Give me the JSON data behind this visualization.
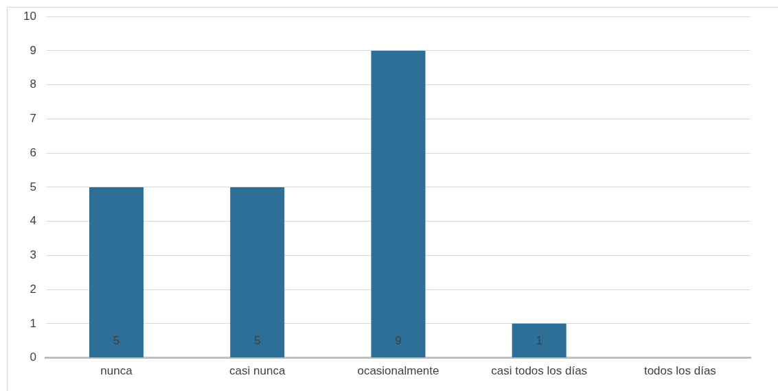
{
  "chart_data": {
    "type": "bar",
    "categories": [
      "nunca",
      "casi nunca",
      "ocasionalmente",
      "casi todos los días",
      "todos los días"
    ],
    "values": [
      5,
      5,
      9,
      1,
      0
    ],
    "color": "#2e6f97",
    "value_labels": [
      "5",
      "5",
      "9",
      "1",
      null
    ],
    "ylim": [
      0,
      10
    ],
    "yticks": [
      0,
      1,
      2,
      3,
      4,
      5,
      6,
      7,
      8,
      9,
      10
    ],
    "grid": "y",
    "legend": false
  }
}
